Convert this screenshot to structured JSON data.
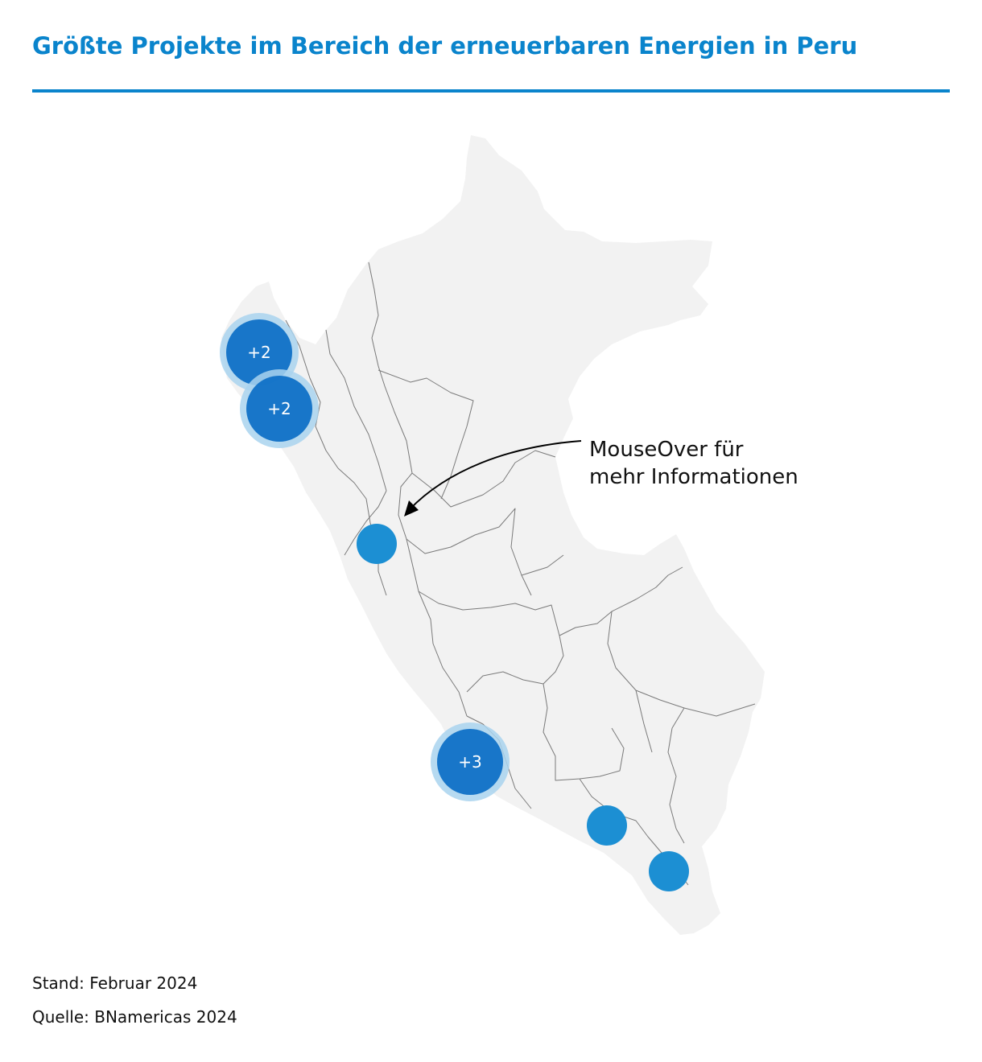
{
  "title": "Größte Projekte im Bereich der erneuerbaren Energien in Peru",
  "colors": {
    "title": "#0a84cc",
    "rule": "#0a84cc",
    "land": "#f2f2f2",
    "border": "#7a7a7a",
    "marker": "#1c8fd3",
    "cluster": "#0b6ec5",
    "cluster_halo": "#a9d3ef"
  },
  "annotation": {
    "line1": "MouseOver für",
    "line2": "mehr Informationen"
  },
  "markers": [
    {
      "kind": "cluster",
      "label": "+2",
      "name": "cluster-marker-piura"
    },
    {
      "kind": "cluster",
      "label": "+2",
      "name": "cluster-marker-lambayeque"
    },
    {
      "kind": "single",
      "label": "",
      "name": "project-marker-ancash"
    },
    {
      "kind": "cluster",
      "label": "+3",
      "name": "cluster-marker-ica"
    },
    {
      "kind": "single",
      "label": "",
      "name": "project-marker-arequipa"
    },
    {
      "kind": "single",
      "label": "",
      "name": "project-marker-moquegua"
    }
  ],
  "footer": {
    "stand": "Stand: Februar 2024",
    "source": "Quelle: BNamericas 2024"
  }
}
